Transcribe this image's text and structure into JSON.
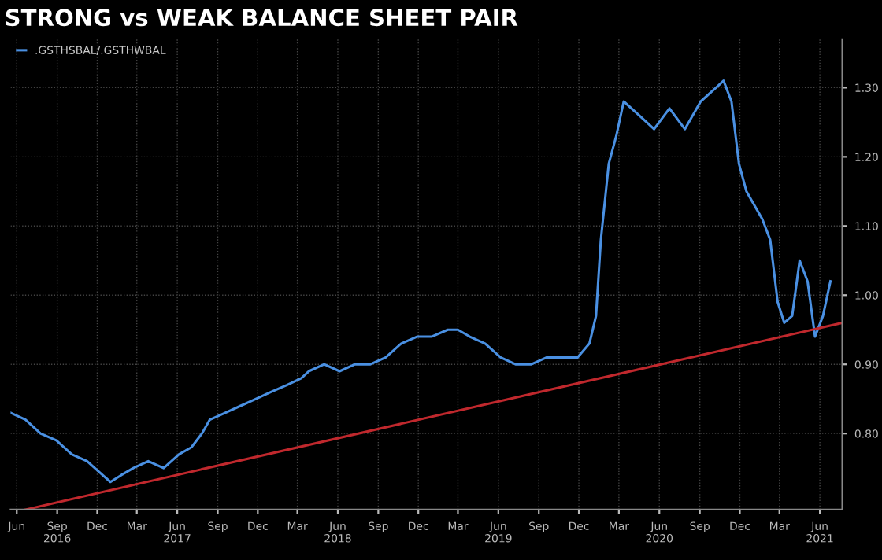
{
  "chart_data": {
    "type": "line",
    "title": "STRONG vs WEAK BALANCE SHEET PAIR",
    "xlim": [
      "2016-05-18",
      "2021-07-22"
    ],
    "ylim": [
      0.69,
      1.37
    ],
    "yticks": [
      {
        "value": 0.8,
        "label": "0.80"
      },
      {
        "value": 0.9,
        "label": "0.90"
      },
      {
        "value": 1.0,
        "label": "1.00"
      },
      {
        "value": 1.1,
        "label": "1.10"
      },
      {
        "value": 1.2,
        "label": "1.20"
      },
      {
        "value": 1.3,
        "label": "1.30"
      }
    ],
    "xticks": [
      {
        "value": "2016-06-01",
        "label": "Jun"
      },
      {
        "value": "2016-09-01",
        "label": "Sep\n2016"
      },
      {
        "value": "2016-12-01",
        "label": "Dec"
      },
      {
        "value": "2017-03-01",
        "label": "Mar"
      },
      {
        "value": "2017-06-01",
        "label": "Jun\n2017"
      },
      {
        "value": "2017-09-01",
        "label": "Sep"
      },
      {
        "value": "2017-12-01",
        "label": "Dec"
      },
      {
        "value": "2018-03-01",
        "label": "Mar"
      },
      {
        "value": "2018-06-01",
        "label": "Jun\n2018"
      },
      {
        "value": "2018-09-01",
        "label": "Sep"
      },
      {
        "value": "2018-12-01",
        "label": "Dec"
      },
      {
        "value": "2019-03-01",
        "label": "Mar"
      },
      {
        "value": "2019-06-01",
        "label": "Jun\n2019"
      },
      {
        "value": "2019-09-01",
        "label": "Sep"
      },
      {
        "value": "2019-12-01",
        "label": "Dec"
      },
      {
        "value": "2020-03-01",
        "label": "Mar"
      },
      {
        "value": "2020-06-01",
        "label": "Jun\n2020"
      },
      {
        "value": "2020-09-01",
        "label": "Sep"
      },
      {
        "value": "2020-12-01",
        "label": "Dec"
      },
      {
        "value": "2021-03-01",
        "label": "Mar"
      },
      {
        "value": "2021-06-01",
        "label": "Jun\n2021"
      }
    ],
    "grid": true,
    "legend": "top left",
    "series": [
      {
        "name": ".GSTHSBAL/.GSTHWBAL",
        "color": "#4a90e2",
        "x": [
          "2016-05-18",
          "2016-06-21",
          "2016-07-25",
          "2016-08-30",
          "2016-10-04",
          "2016-11-08",
          "2016-12-13",
          "2016-12-31",
          "2017-01-25",
          "2017-02-21",
          "2017-03-27",
          "2017-05-01",
          "2017-06-05",
          "2017-07-03",
          "2017-07-27",
          "2017-08-14",
          "2017-09-18",
          "2017-10-23",
          "2017-11-27",
          "2017-12-31",
          "2018-02-05",
          "2018-03-10",
          "2018-03-27",
          "2018-05-01",
          "2018-06-05",
          "2018-07-10",
          "2018-08-14",
          "2018-09-18",
          "2018-10-23",
          "2018-11-28",
          "2018-12-31",
          "2019-02-06",
          "2019-03-01",
          "2019-03-28",
          "2019-05-02",
          "2019-06-06",
          "2019-07-10",
          "2019-08-15",
          "2019-09-19",
          "2019-10-24",
          "2019-11-28",
          "2019-12-25",
          "2020-01-09",
          "2020-01-20",
          "2020-02-07",
          "2020-02-24",
          "2020-03-12",
          "2020-04-16",
          "2020-05-20",
          "2020-06-24",
          "2020-07-29",
          "2020-09-03",
          "2020-10-08",
          "2020-10-25",
          "2020-11-12",
          "2020-11-29",
          "2020-12-16",
          "2021-01-21",
          "2021-02-08",
          "2021-02-25",
          "2021-03-12",
          "2021-03-30",
          "2021-04-16",
          "2021-05-04",
          "2021-05-21",
          "2021-06-08",
          "2021-06-25"
        ],
        "values": [
          0.83,
          0.82,
          0.8,
          0.79,
          0.77,
          0.76,
          0.74,
          0.73,
          0.74,
          0.75,
          0.76,
          0.75,
          0.77,
          0.78,
          0.8,
          0.82,
          0.83,
          0.84,
          0.85,
          0.86,
          0.87,
          0.88,
          0.89,
          0.9,
          0.89,
          0.9,
          0.9,
          0.91,
          0.93,
          0.94,
          0.94,
          0.95,
          0.95,
          0.94,
          0.93,
          0.91,
          0.9,
          0.9,
          0.91,
          0.91,
          0.91,
          0.93,
          0.97,
          1.08,
          1.19,
          1.23,
          1.28,
          1.26,
          1.24,
          1.27,
          1.24,
          1.28,
          1.3,
          1.31,
          1.28,
          1.19,
          1.15,
          1.11,
          1.08,
          0.99,
          0.96,
          0.97,
          1.05,
          1.02,
          0.94,
          0.97,
          1.02
        ]
      },
      {
        "type": "line",
        "color": "#c0282d",
        "x": [
          "2016-06-21",
          "2021-07-22"
        ],
        "values": [
          0.69,
          0.96
        ]
      }
    ]
  }
}
